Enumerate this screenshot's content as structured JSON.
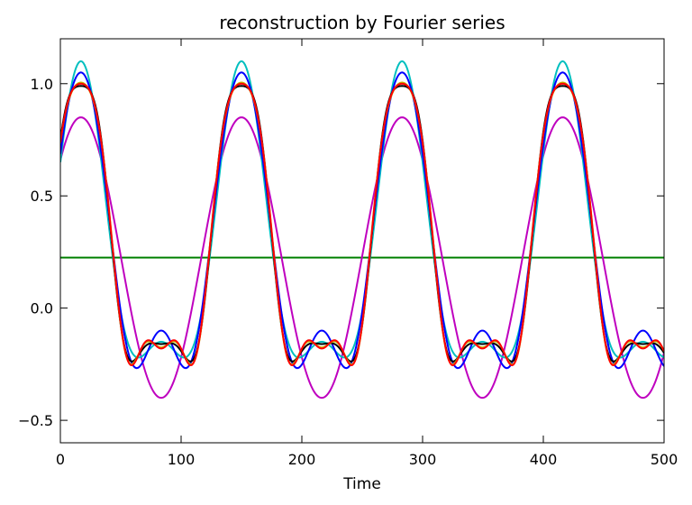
{
  "chart_data": {
    "type": "line",
    "title": "reconstruction by Fourier series",
    "xlabel": "Time",
    "ylabel": "",
    "xlim": [
      0,
      500
    ],
    "ylim": [
      -0.6,
      1.2
    ],
    "x_ticks": [
      0,
      100,
      200,
      300,
      400,
      500
    ],
    "x_tick_labels": [
      "0",
      "100",
      "200",
      "300",
      "400",
      "500"
    ],
    "y_ticks": [
      -0.5,
      0.0,
      0.5,
      1.0
    ],
    "y_tick_labels": [
      "−0.5",
      "0.0",
      "0.5",
      "1.0"
    ],
    "grid": false,
    "period": 133,
    "peak_time": 17,
    "series": [
      {
        "color": "#008000",
        "mean": 0.225,
        "harmonics": []
      },
      {
        "color": "#bf00bf",
        "mean": 0.225,
        "harmonics": [
          0.625
        ]
      },
      {
        "color": "#00bfbf",
        "mean": 0.225,
        "harmonics": [
          0.625,
          0.25
        ]
      },
      {
        "color": "#0000ff",
        "mean": 0.225,
        "harmonics": [
          0.625,
          0.25,
          -0.05
        ]
      },
      {
        "color": "#000000",
        "mean": 0.225,
        "harmonics": [
          0.625,
          0.25,
          -0.05,
          -0.06
        ]
      },
      {
        "color": "#bfbf00",
        "mean": 0.225,
        "harmonics": [
          0.625,
          0.25,
          -0.05,
          -0.06,
          0.015
        ]
      },
      {
        "color": "#ff0000",
        "mean": 0.225,
        "harmonics": [
          0.625,
          0.25,
          -0.05,
          -0.06,
          0.015,
          -0.005
        ]
      }
    ]
  }
}
